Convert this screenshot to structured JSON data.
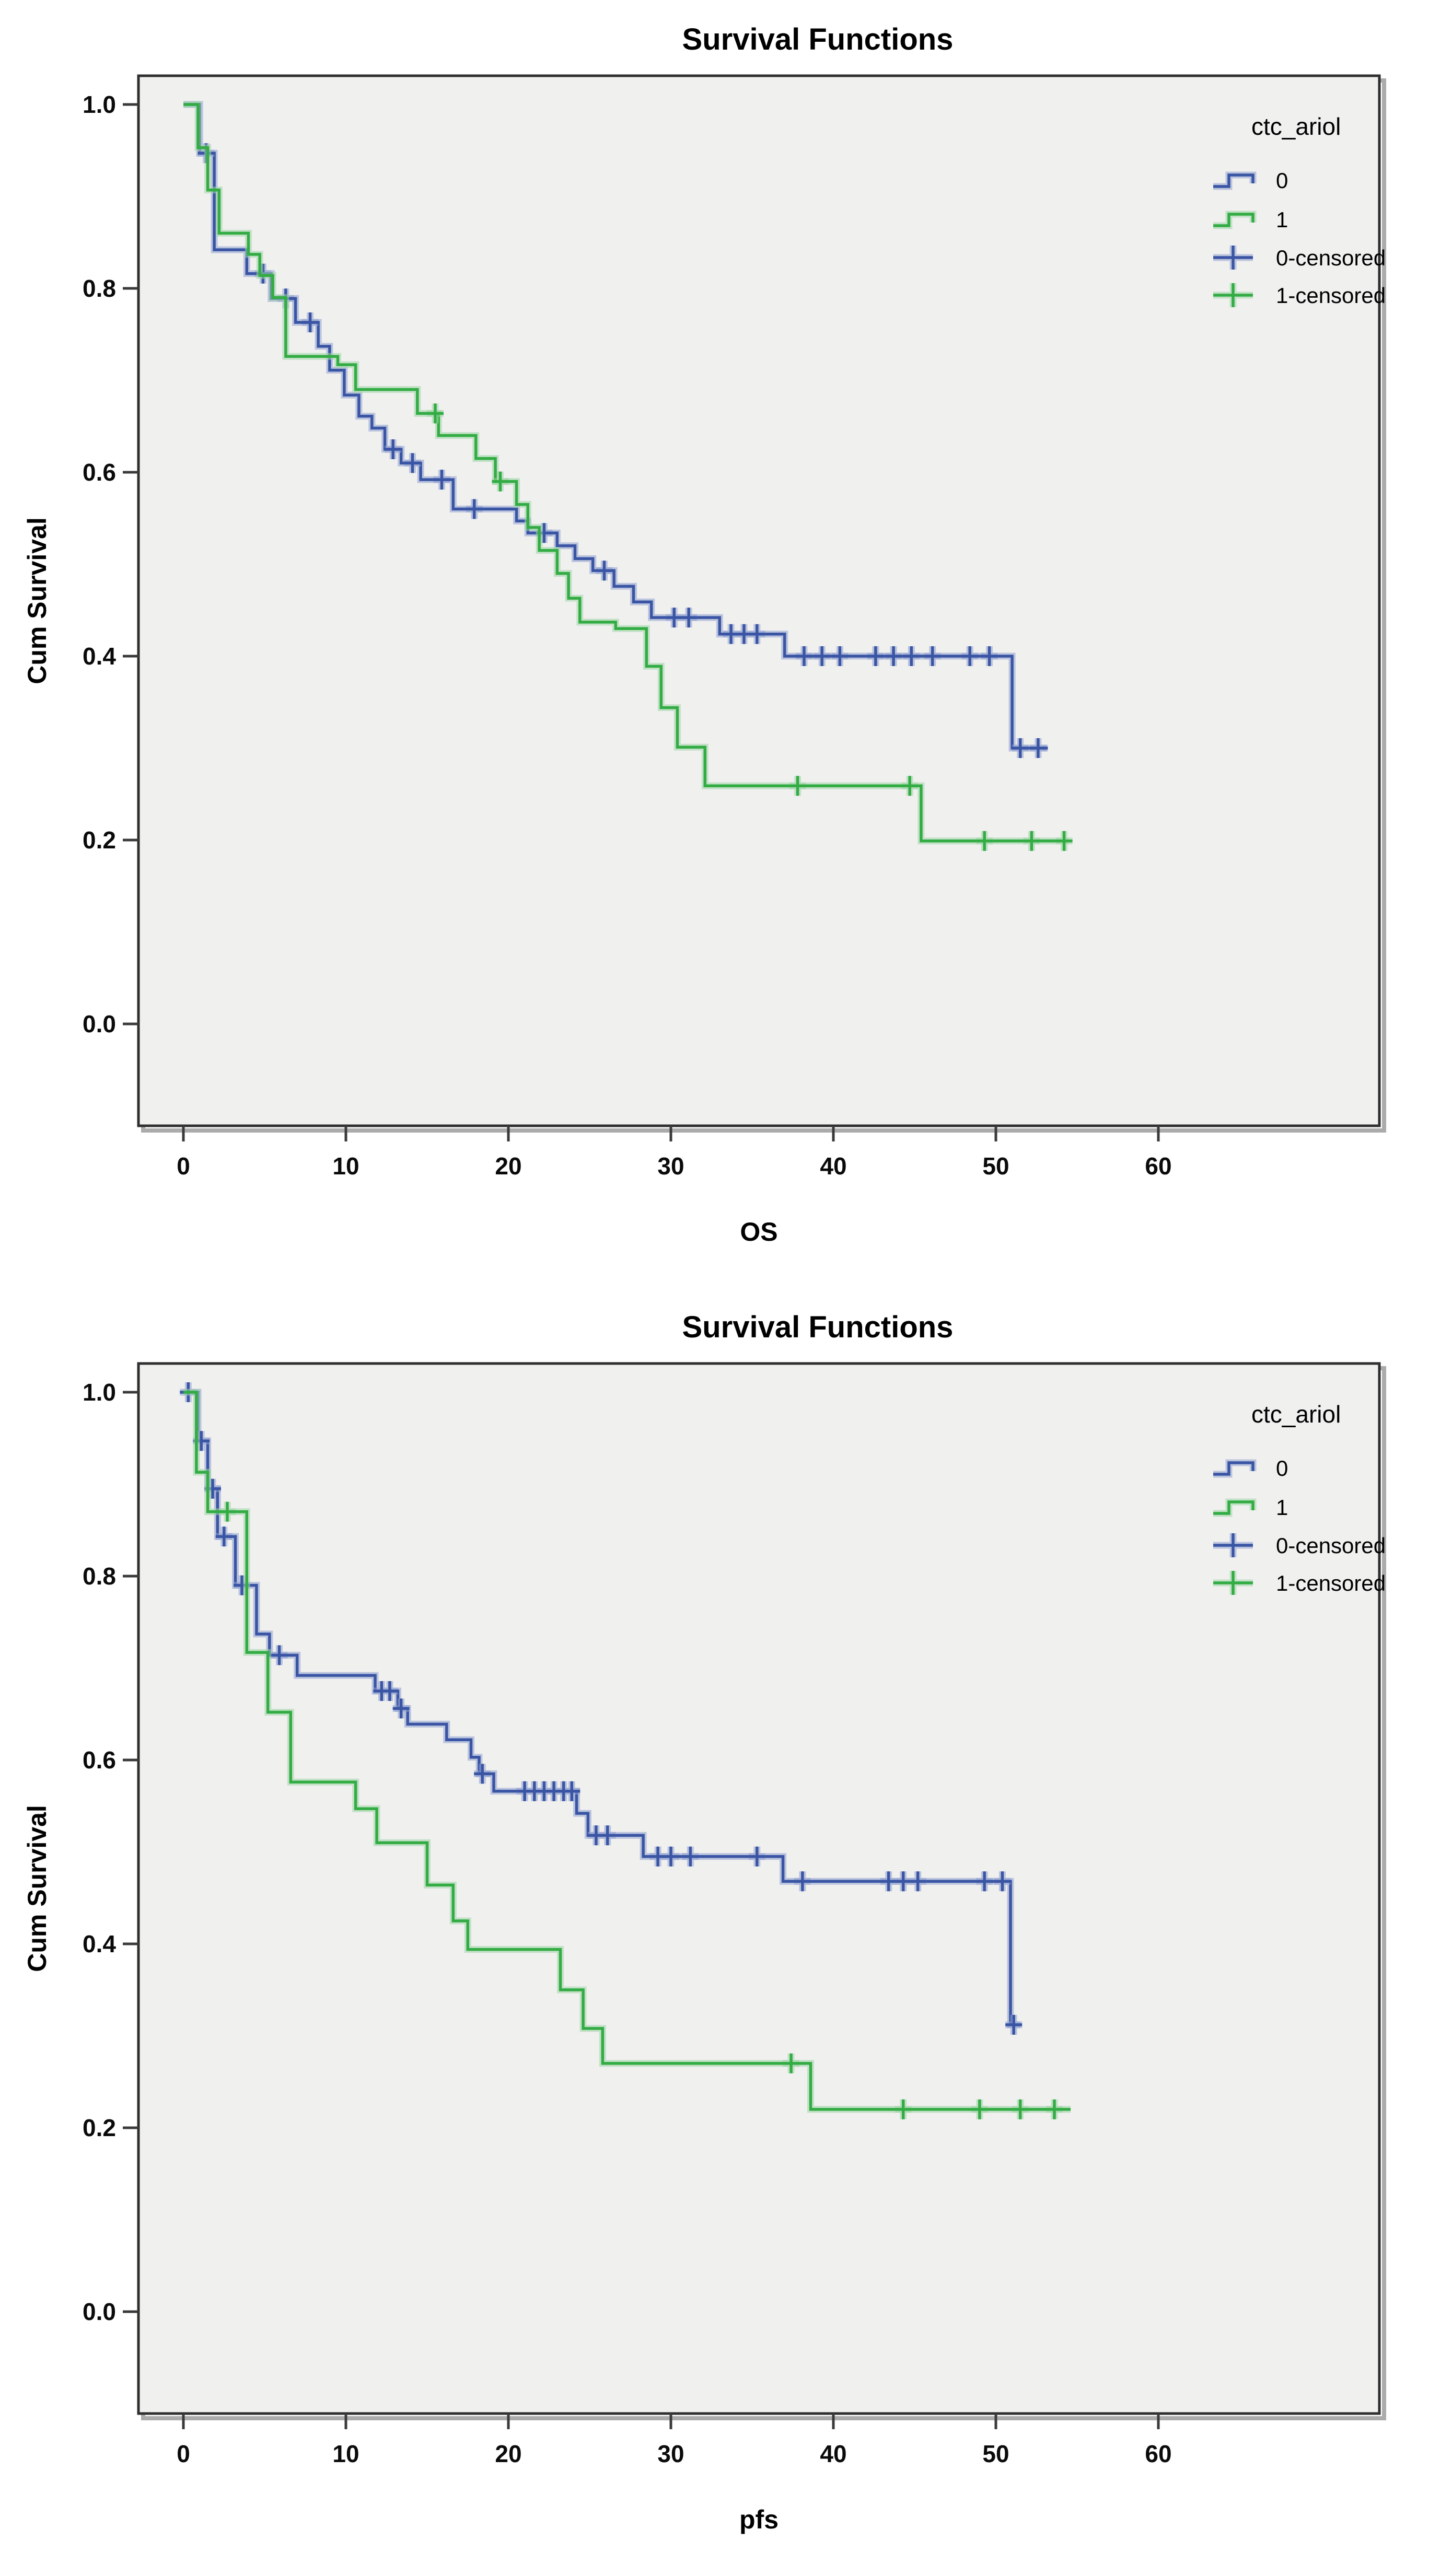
{
  "page": {
    "background": "#ffffff"
  },
  "colors": {
    "plot_background": "#f0f0ef",
    "plot_border": "#2f2f2f",
    "plot_shadow": "#ababab",
    "tick": "#3a3a3a",
    "series0_blue": "#3a55a4",
    "series0_blue_halo": "#8fa0cf",
    "series1_green": "#33ac44",
    "series1_green_halo": "#9cd6a4"
  },
  "chart_data": [
    {
      "type": "line",
      "subtype": "kaplan_meier_step",
      "title": "Survival Functions",
      "xlabel": "OS",
      "ylabel": "Cum Survival",
      "x_ticks": [
        0,
        10,
        20,
        30,
        40,
        50,
        60
      ],
      "y_ticks": [
        "0.0",
        "0.2",
        "0.4",
        "0.6",
        "0.8",
        "1.0"
      ],
      "xlim": [
        -2.8,
        73.6
      ],
      "ylim": [
        -0.11,
        1.09
      ],
      "grid": false,
      "legend_position": "right",
      "legend": {
        "title": "ctc_ariol",
        "items": [
          {
            "label": "0",
            "glyph": "step",
            "color_key": "series0_blue"
          },
          {
            "label": "1",
            "glyph": "step",
            "color_key": "series1_green"
          },
          {
            "label": "0-censored",
            "glyph": "plus",
            "color_key": "series0_blue"
          },
          {
            "label": "1-censored",
            "glyph": "plus",
            "color_key": "series1_green"
          }
        ]
      },
      "series": [
        {
          "name": "0",
          "color_key": "series0_blue",
          "halo_key": "series0_blue_halo",
          "start": [
            0,
            1.0
          ],
          "end_time": 53.2,
          "steps": [
            [
              1,
              0.947
            ],
            [
              1.9,
              0.842
            ],
            [
              3.9,
              0.816
            ],
            [
              5.4,
              0.789
            ],
            [
              6.9,
              0.763
            ],
            [
              8.3,
              0.737
            ],
            [
              9.0,
              0.711
            ],
            [
              9.9,
              0.684
            ],
            [
              10.8,
              0.661
            ],
            [
              11.6,
              0.648
            ],
            [
              12.4,
              0.625
            ],
            [
              13.4,
              0.61
            ],
            [
              14.6,
              0.592
            ],
            [
              16.6,
              0.56
            ],
            [
              20.5,
              0.547
            ],
            [
              21.2,
              0.534
            ],
            [
              23.0,
              0.52
            ],
            [
              24.1,
              0.506
            ],
            [
              25.2,
              0.493
            ],
            [
              26.5,
              0.476
            ],
            [
              27.7,
              0.459
            ],
            [
              28.8,
              0.442
            ],
            [
              33.0,
              0.424
            ],
            [
              37.0,
              0.4
            ],
            [
              51.0,
              0.3
            ]
          ],
          "censors": [
            [
              1.4,
              0.947
            ],
            [
              4.9,
              0.816
            ],
            [
              6.3,
              0.789
            ],
            [
              7.8,
              0.763
            ],
            [
              12.9,
              0.625
            ],
            [
              14.1,
              0.61
            ],
            [
              15.9,
              0.592
            ],
            [
              17.9,
              0.56
            ],
            [
              22.2,
              0.534
            ],
            [
              25.9,
              0.493
            ],
            [
              30.2,
              0.442
            ],
            [
              31.1,
              0.442
            ],
            [
              33.7,
              0.424
            ],
            [
              34.5,
              0.424
            ],
            [
              35.3,
              0.424
            ],
            [
              38.2,
              0.4
            ],
            [
              39.3,
              0.4
            ],
            [
              40.4,
              0.4
            ],
            [
              42.6,
              0.4
            ],
            [
              43.7,
              0.4
            ],
            [
              44.8,
              0.4
            ],
            [
              46.1,
              0.4
            ],
            [
              48.4,
              0.4
            ],
            [
              49.6,
              0.4
            ],
            [
              51.5,
              0.3
            ],
            [
              52.6,
              0.3
            ]
          ]
        },
        {
          "name": "1",
          "color_key": "series1_green",
          "halo_key": "series1_green_halo",
          "start": [
            0,
            1.0
          ],
          "end_time": 54.5,
          "steps": [
            [
              0.9,
              0.953
            ],
            [
              1.5,
              0.907
            ],
            [
              2.2,
              0.86
            ],
            [
              4.0,
              0.837
            ],
            [
              4.7,
              0.814
            ],
            [
              5.5,
              0.79
            ],
            [
              6.3,
              0.726
            ],
            [
              9.5,
              0.717
            ],
            [
              10.6,
              0.69
            ],
            [
              14.4,
              0.664
            ],
            [
              15.7,
              0.64
            ],
            [
              18.0,
              0.615
            ],
            [
              19.2,
              0.59
            ],
            [
              20.5,
              0.565
            ],
            [
              21.2,
              0.54
            ],
            [
              21.9,
              0.515
            ],
            [
              23.0,
              0.49
            ],
            [
              23.7,
              0.463
            ],
            [
              24.4,
              0.437
            ],
            [
              26.6,
              0.43
            ],
            [
              28.5,
              0.389
            ],
            [
              29.4,
              0.344
            ],
            [
              30.4,
              0.301
            ],
            [
              32.1,
              0.259
            ],
            [
              45.4,
              0.199
            ]
          ],
          "censors": [
            [
              15.5,
              0.664
            ],
            [
              19.5,
              0.59
            ],
            [
              37.8,
              0.259
            ],
            [
              44.7,
              0.259
            ],
            [
              49.3,
              0.199
            ],
            [
              52.2,
              0.199
            ],
            [
              54.2,
              0.199
            ]
          ]
        }
      ]
    },
    {
      "type": "line",
      "subtype": "kaplan_meier_step",
      "title": "Survival Functions",
      "xlabel": "pfs",
      "ylabel": "Cum Survival",
      "x_ticks": [
        0,
        10,
        20,
        30,
        40,
        50,
        60
      ],
      "y_ticks": [
        "0.0",
        "0.2",
        "0.4",
        "0.6",
        "0.8",
        "1.0"
      ],
      "xlim": [
        -2.8,
        73.6
      ],
      "ylim": [
        -0.11,
        1.09
      ],
      "grid": false,
      "legend_position": "right",
      "legend": {
        "title": "ctc_ariol",
        "items": [
          {
            "label": "0",
            "glyph": "step",
            "color_key": "series0_blue"
          },
          {
            "label": "1",
            "glyph": "step",
            "color_key": "series1_green"
          },
          {
            "label": "0-censored",
            "glyph": "plus",
            "color_key": "series0_blue"
          },
          {
            "label": "1-censored",
            "glyph": "plus",
            "color_key": "series1_green"
          }
        ]
      },
      "series": [
        {
          "name": "0",
          "color_key": "series0_blue",
          "halo_key": "series0_blue_halo",
          "start": [
            0,
            1.0
          ],
          "end_time": 51.5,
          "steps": [
            [
              0.9,
              0.947
            ],
            [
              1.5,
              0.895
            ],
            [
              2.1,
              0.843
            ],
            [
              3.2,
              0.79
            ],
            [
              4.5,
              0.737
            ],
            [
              5.3,
              0.714
            ],
            [
              7.0,
              0.692
            ],
            [
              11.8,
              0.675
            ],
            [
              13.2,
              0.656
            ],
            [
              13.8,
              0.639
            ],
            [
              16.2,
              0.622
            ],
            [
              17.7,
              0.603
            ],
            [
              18.2,
              0.585
            ],
            [
              19.1,
              0.566
            ],
            [
              24.2,
              0.542
            ],
            [
              24.9,
              0.518
            ],
            [
              28.3,
              0.495
            ],
            [
              36.9,
              0.468
            ],
            [
              50.9,
              0.312
            ]
          ],
          "censors": [
            [
              0.3,
              1.0
            ],
            [
              1.1,
              0.947
            ],
            [
              1.8,
              0.895
            ],
            [
              2.5,
              0.843
            ],
            [
              3.6,
              0.79
            ],
            [
              5.9,
              0.714
            ],
            [
              12.2,
              0.675
            ],
            [
              12.7,
              0.675
            ],
            [
              13.4,
              0.656
            ],
            [
              18.4,
              0.585
            ],
            [
              21.0,
              0.566
            ],
            [
              21.6,
              0.566
            ],
            [
              22.2,
              0.566
            ],
            [
              22.8,
              0.566
            ],
            [
              23.4,
              0.566
            ],
            [
              23.9,
              0.566
            ],
            [
              25.4,
              0.518
            ],
            [
              26.1,
              0.518
            ],
            [
              29.2,
              0.495
            ],
            [
              30.0,
              0.495
            ],
            [
              31.2,
              0.495
            ],
            [
              35.3,
              0.495
            ],
            [
              38.1,
              0.468
            ],
            [
              43.4,
              0.468
            ],
            [
              44.3,
              0.468
            ],
            [
              45.2,
              0.468
            ],
            [
              49.3,
              0.468
            ],
            [
              50.4,
              0.468
            ],
            [
              51.1,
              0.312
            ]
          ]
        },
        {
          "name": "1",
          "color_key": "series1_green",
          "halo_key": "series1_green_halo",
          "start": [
            0,
            1.0
          ],
          "end_time": 54.6,
          "steps": [
            [
              0.8,
              0.913
            ],
            [
              1.5,
              0.87
            ],
            [
              3.9,
              0.717
            ],
            [
              5.2,
              0.652
            ],
            [
              6.6,
              0.576
            ],
            [
              10.6,
              0.547
            ],
            [
              11.9,
              0.51
            ],
            [
              15.0,
              0.464
            ],
            [
              16.6,
              0.425
            ],
            [
              17.5,
              0.394
            ],
            [
              23.2,
              0.35
            ],
            [
              24.6,
              0.308
            ],
            [
              25.8,
              0.27
            ],
            [
              38.6,
              0.22
            ]
          ],
          "censors": [
            [
              2.7,
              0.87
            ],
            [
              37.4,
              0.27
            ],
            [
              44.3,
              0.22
            ],
            [
              49.0,
              0.22
            ],
            [
              51.5,
              0.22
            ],
            [
              53.6,
              0.22
            ]
          ]
        }
      ]
    }
  ]
}
